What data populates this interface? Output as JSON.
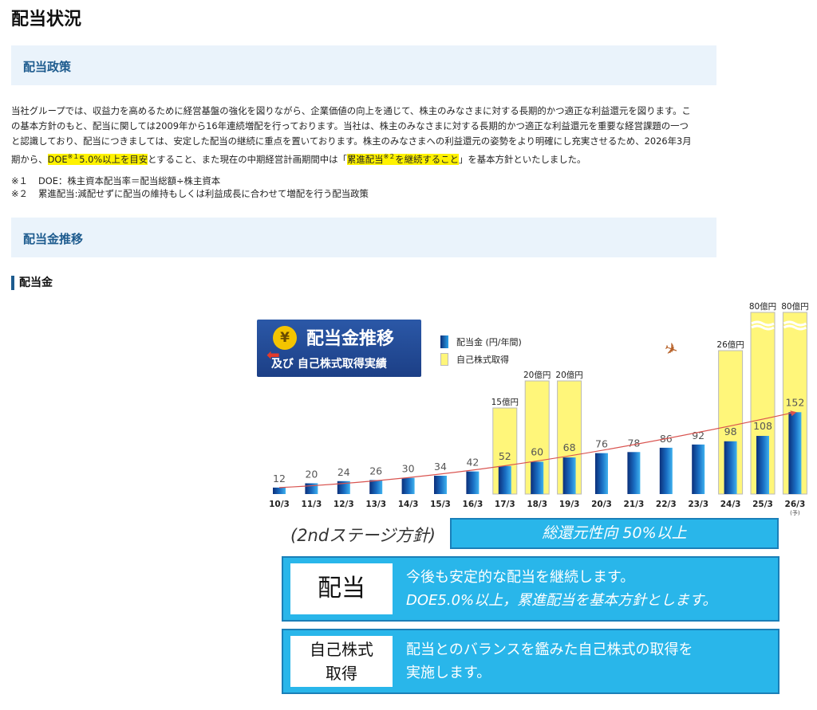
{
  "page_title": "配当状況",
  "sections": {
    "policy_heading": "配当政策",
    "trend_heading": "配当金推移"
  },
  "policy": {
    "p1": "当社グループでは、収益力を高めるために経営基盤の強化を図りながら、企業価値の向上を通じて、株主のみなさまに対する長期的かつ適正な利益還元を図ります。こ",
    "p2": "の基本方針のもと、配当に関しては2009年から16年連続増配を行っております。当社は、株主のみなさまに対する長期的かつ適正な利益還元を重要な経営課題の一つ",
    "p3": "と認識しており、配当につきましては、安定した配当の継続に重点を置いております。株主のみなさまへの利益還元の姿勢をより明確にし充実させるため、2026年3月",
    "p4_a": "期から、",
    "hl1_a": "DOE",
    "hl1_sup": "※１",
    "hl1_b": "5.0%以上を目安",
    "p4_b": "とすること、また現在の中期経営計画期間中は「",
    "hl2_a": "累進配当",
    "hl2_sup": "※２",
    "hl2_b": "を継続すること",
    "p4_c": "」を基本方針といたしました。"
  },
  "notes": [
    {
      "key": "※１",
      "text": "DOE：株主資本配当率＝配当総額÷株主資本"
    },
    {
      "key": "※２",
      "text": "累進配当:減配せずに配当の維持もしくは利益成長に合わせて増配を行う配当政策"
    }
  ],
  "sub_heading": "配当金",
  "chart_data": {
    "type": "bar",
    "title": "配当金推移",
    "subtitle": "及び 自己株式取得実績",
    "categories": [
      "10/3",
      "11/3",
      "12/3",
      "13/3",
      "14/3",
      "15/3",
      "16/3",
      "17/3",
      "18/3",
      "19/3",
      "20/3",
      "21/3",
      "22/3",
      "23/3",
      "24/3",
      "25/3",
      "26/3"
    ],
    "forecast_note": "(予)",
    "series": [
      {
        "name": "配当金 (円/年間)",
        "values": [
          12,
          20,
          24,
          26,
          30,
          34,
          42,
          52,
          60,
          68,
          76,
          78,
          86,
          92,
          98,
          108,
          152
        ]
      },
      {
        "name": "自己株式取得",
        "labels": [
          null,
          null,
          null,
          null,
          null,
          null,
          null,
          "15億円",
          "20億円",
          "20億円",
          null,
          null,
          null,
          null,
          "26億円",
          "80億円",
          "80億円"
        ],
        "values_oku_yen": [
          null,
          null,
          null,
          null,
          null,
          null,
          null,
          15,
          20,
          20,
          null,
          null,
          null,
          null,
          26,
          80,
          80
        ]
      }
    ],
    "trend_line": true,
    "colors": {
      "dividend": "#1464b4",
      "buyback": "#fff67a",
      "trend": "#d9534f"
    }
  },
  "chart_logo_icon": "yen-coin-icon",
  "stage_label": "(2ndステージ方針)",
  "total_return": "総還元性向 50%以上",
  "dividend_box": {
    "label": "配当",
    "line1": "今後も安定的な配当を継続します。",
    "line2": "DOE5.0%以上，累進配当を基本方針とします。"
  },
  "buyback_box": {
    "label_1": "自己株式",
    "label_2": "取得",
    "line1": "配当とのバランスを鑑みた自己株式の取得を",
    "line2": "実施します。"
  }
}
